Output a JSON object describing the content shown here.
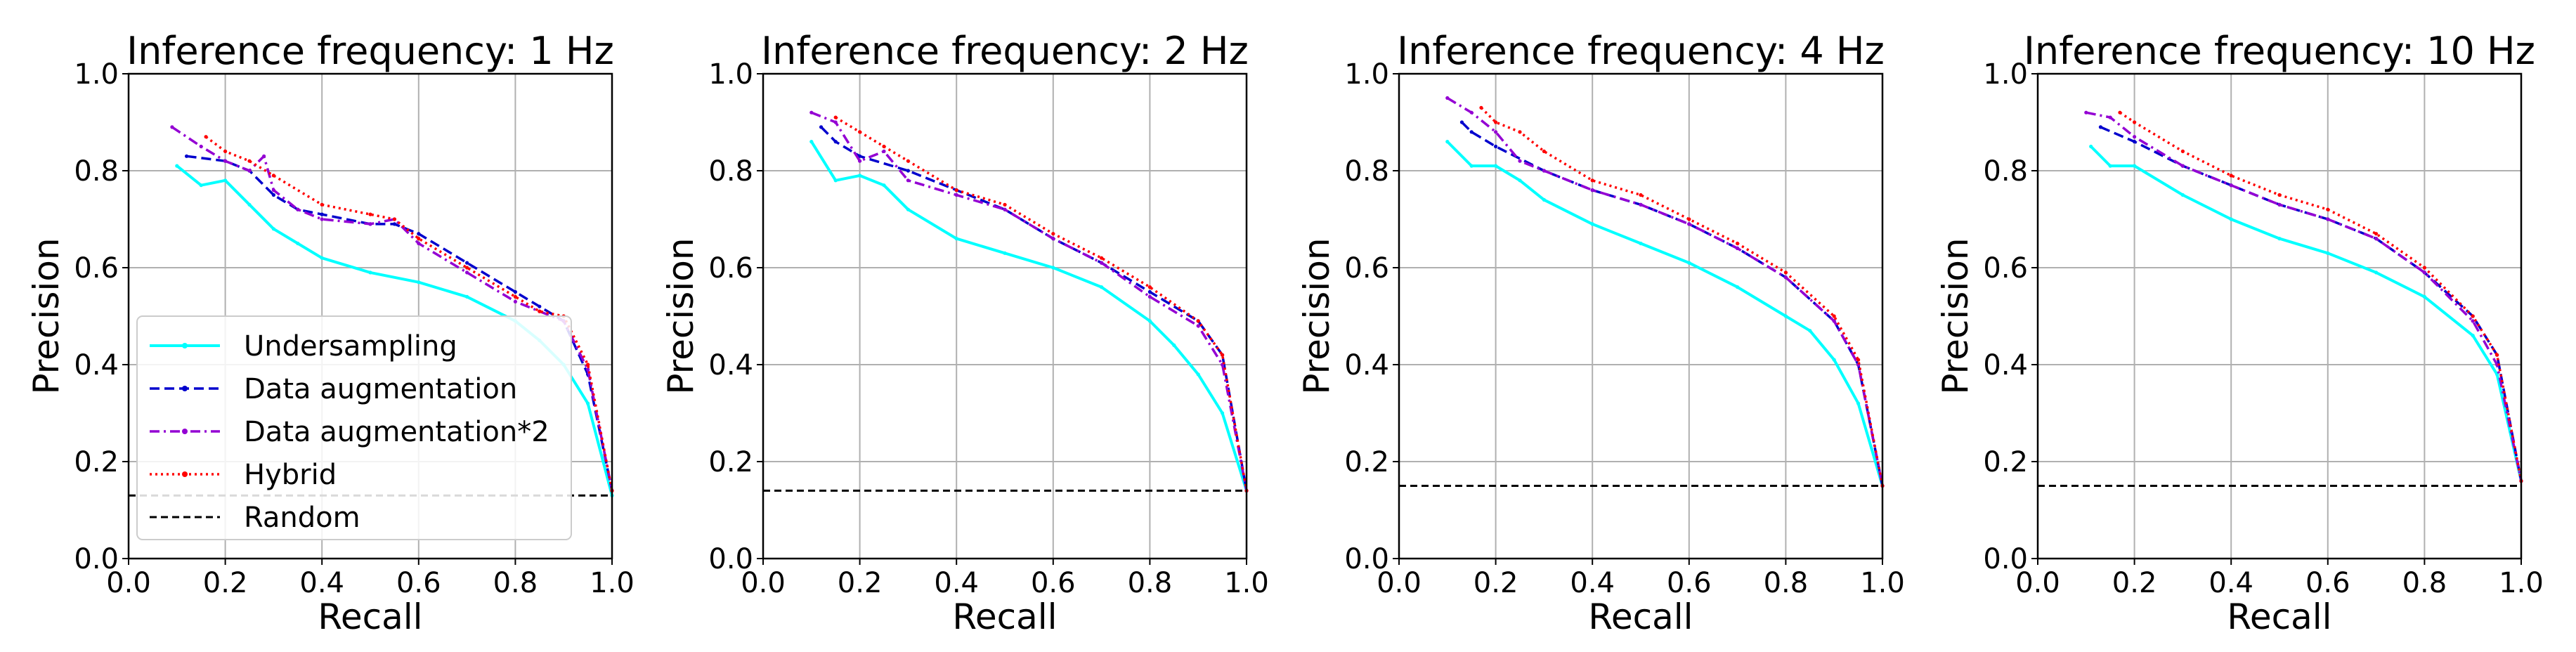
{
  "figure": {
    "x_ticks": [
      "0.0",
      "0.2",
      "0.4",
      "0.6",
      "0.8",
      "1.0"
    ],
    "y_ticks": [
      "0.0",
      "0.2",
      "0.4",
      "0.6",
      "0.8",
      "1.0"
    ]
  },
  "legend": {
    "location": "lower-left of first panel",
    "entries": [
      {
        "label": "Undersampling",
        "color": "#00ffff"
      },
      {
        "label": "Data augmentation",
        "color": "#0000cd"
      },
      {
        "label": "Data augmentation*2",
        "color": "#9400d3"
      },
      {
        "label": "Hybrid",
        "color": "#ff0000"
      },
      {
        "label": "Random",
        "color": "#000000"
      }
    ]
  },
  "chart_data": [
    {
      "type": "line",
      "title": "Inference frequency: 1 Hz",
      "xlabel": "Recall",
      "ylabel": "Precision",
      "xlim": [
        0,
        1
      ],
      "ylim": [
        0,
        1
      ],
      "grid": true,
      "series": [
        {
          "name": "Undersampling",
          "color": "#00ffff",
          "x": [
            0.1,
            0.15,
            0.2,
            0.25,
            0.3,
            0.35,
            0.4,
            0.5,
            0.6,
            0.7,
            0.8,
            0.85,
            0.9,
            0.95,
            1.0
          ],
          "y": [
            0.81,
            0.77,
            0.78,
            0.73,
            0.68,
            0.65,
            0.62,
            0.59,
            0.57,
            0.54,
            0.49,
            0.45,
            0.4,
            0.32,
            0.13
          ]
        },
        {
          "name": "Data augmentation",
          "color": "#0000cd",
          "x": [
            0.12,
            0.2,
            0.25,
            0.3,
            0.35,
            0.4,
            0.5,
            0.55,
            0.6,
            0.7,
            0.8,
            0.85,
            0.9,
            0.95,
            1.0
          ],
          "y": [
            0.83,
            0.82,
            0.8,
            0.75,
            0.72,
            0.71,
            0.69,
            0.69,
            0.67,
            0.61,
            0.55,
            0.52,
            0.49,
            0.38,
            0.14
          ]
        },
        {
          "name": "Data augmentation*2",
          "color": "#9400d3",
          "x": [
            0.09,
            0.15,
            0.2,
            0.25,
            0.28,
            0.3,
            0.35,
            0.4,
            0.5,
            0.55,
            0.6,
            0.7,
            0.8,
            0.85,
            0.9,
            0.95,
            1.0
          ],
          "y": [
            0.89,
            0.85,
            0.82,
            0.8,
            0.83,
            0.76,
            0.72,
            0.7,
            0.69,
            0.7,
            0.65,
            0.59,
            0.53,
            0.51,
            0.49,
            0.39,
            0.14
          ]
        },
        {
          "name": "Hybrid",
          "color": "#ff0000",
          "x": [
            0.16,
            0.2,
            0.25,
            0.3,
            0.4,
            0.5,
            0.55,
            0.6,
            0.7,
            0.8,
            0.85,
            0.9,
            0.95,
            1.0
          ],
          "y": [
            0.87,
            0.84,
            0.82,
            0.79,
            0.73,
            0.71,
            0.7,
            0.66,
            0.6,
            0.54,
            0.51,
            0.5,
            0.4,
            0.14
          ]
        },
        {
          "name": "Random",
          "color": "#000000",
          "x": [
            0,
            1
          ],
          "y": [
            0.13,
            0.13
          ]
        }
      ]
    },
    {
      "type": "line",
      "title": "Inference frequency: 2 Hz",
      "xlabel": "Recall",
      "ylabel": "Precision",
      "xlim": [
        0,
        1
      ],
      "ylim": [
        0,
        1
      ],
      "grid": true,
      "series": [
        {
          "name": "Undersampling",
          "color": "#00ffff",
          "x": [
            0.1,
            0.15,
            0.2,
            0.25,
            0.3,
            0.4,
            0.5,
            0.6,
            0.7,
            0.8,
            0.85,
            0.9,
            0.95,
            1.0
          ],
          "y": [
            0.86,
            0.78,
            0.79,
            0.77,
            0.72,
            0.66,
            0.63,
            0.6,
            0.56,
            0.49,
            0.44,
            0.38,
            0.3,
            0.14
          ]
        },
        {
          "name": "Data augmentation",
          "color": "#0000cd",
          "x": [
            0.12,
            0.15,
            0.2,
            0.3,
            0.4,
            0.5,
            0.6,
            0.7,
            0.8,
            0.9,
            0.95,
            1.0
          ],
          "y": [
            0.89,
            0.86,
            0.83,
            0.8,
            0.76,
            0.72,
            0.66,
            0.61,
            0.55,
            0.49,
            0.42,
            0.14
          ]
        },
        {
          "name": "Data augmentation*2",
          "color": "#9400d3",
          "x": [
            0.1,
            0.15,
            0.2,
            0.25,
            0.3,
            0.4,
            0.5,
            0.6,
            0.7,
            0.8,
            0.9,
            0.95,
            1.0
          ],
          "y": [
            0.92,
            0.9,
            0.82,
            0.84,
            0.78,
            0.75,
            0.72,
            0.66,
            0.61,
            0.54,
            0.48,
            0.4,
            0.14
          ]
        },
        {
          "name": "Hybrid",
          "color": "#ff0000",
          "x": [
            0.15,
            0.2,
            0.25,
            0.3,
            0.4,
            0.5,
            0.6,
            0.7,
            0.8,
            0.9,
            0.95,
            1.0
          ],
          "y": [
            0.91,
            0.88,
            0.85,
            0.82,
            0.76,
            0.73,
            0.67,
            0.62,
            0.56,
            0.49,
            0.42,
            0.14
          ]
        },
        {
          "name": "Random",
          "color": "#000000",
          "x": [
            0,
            1
          ],
          "y": [
            0.14,
            0.14
          ]
        }
      ]
    },
    {
      "type": "line",
      "title": "Inference frequency: 4 Hz",
      "xlabel": "Recall",
      "ylabel": "Precision",
      "xlim": [
        0,
        1
      ],
      "ylim": [
        0,
        1
      ],
      "grid": true,
      "series": [
        {
          "name": "Undersampling",
          "color": "#00ffff",
          "x": [
            0.1,
            0.15,
            0.2,
            0.25,
            0.3,
            0.4,
            0.5,
            0.6,
            0.7,
            0.8,
            0.85,
            0.9,
            0.95,
            1.0
          ],
          "y": [
            0.86,
            0.81,
            0.81,
            0.78,
            0.74,
            0.69,
            0.65,
            0.61,
            0.56,
            0.5,
            0.47,
            0.41,
            0.32,
            0.15
          ]
        },
        {
          "name": "Data augmentation",
          "color": "#0000cd",
          "x": [
            0.13,
            0.15,
            0.2,
            0.3,
            0.4,
            0.5,
            0.6,
            0.7,
            0.8,
            0.9,
            0.95,
            1.0
          ],
          "y": [
            0.9,
            0.88,
            0.85,
            0.8,
            0.76,
            0.73,
            0.69,
            0.64,
            0.58,
            0.49,
            0.4,
            0.15
          ]
        },
        {
          "name": "Data augmentation*2",
          "color": "#9400d3",
          "x": [
            0.1,
            0.15,
            0.2,
            0.25,
            0.3,
            0.4,
            0.5,
            0.6,
            0.7,
            0.8,
            0.9,
            0.95,
            1.0
          ],
          "y": [
            0.95,
            0.92,
            0.88,
            0.82,
            0.8,
            0.76,
            0.73,
            0.69,
            0.64,
            0.58,
            0.49,
            0.4,
            0.15
          ]
        },
        {
          "name": "Hybrid",
          "color": "#ff0000",
          "x": [
            0.17,
            0.2,
            0.25,
            0.3,
            0.4,
            0.5,
            0.6,
            0.7,
            0.8,
            0.9,
            0.95,
            1.0
          ],
          "y": [
            0.93,
            0.9,
            0.88,
            0.84,
            0.78,
            0.75,
            0.7,
            0.65,
            0.59,
            0.5,
            0.41,
            0.15
          ]
        },
        {
          "name": "Random",
          "color": "#000000",
          "x": [
            0,
            1
          ],
          "y": [
            0.15,
            0.15
          ]
        }
      ]
    },
    {
      "type": "line",
      "title": "Inference frequency: 10 Hz",
      "xlabel": "Recall",
      "ylabel": "Precision",
      "xlim": [
        0,
        1
      ],
      "ylim": [
        0,
        1
      ],
      "grid": true,
      "series": [
        {
          "name": "Undersampling",
          "color": "#00ffff",
          "x": [
            0.11,
            0.15,
            0.2,
            0.3,
            0.4,
            0.5,
            0.6,
            0.7,
            0.8,
            0.9,
            0.95,
            1.0
          ],
          "y": [
            0.85,
            0.81,
            0.81,
            0.75,
            0.7,
            0.66,
            0.63,
            0.59,
            0.54,
            0.46,
            0.38,
            0.16
          ]
        },
        {
          "name": "Data augmentation",
          "color": "#0000cd",
          "x": [
            0.13,
            0.2,
            0.3,
            0.4,
            0.5,
            0.6,
            0.7,
            0.8,
            0.9,
            0.95,
            1.0
          ],
          "y": [
            0.89,
            0.86,
            0.81,
            0.77,
            0.73,
            0.7,
            0.66,
            0.59,
            0.5,
            0.42,
            0.16
          ]
        },
        {
          "name": "Data augmentation*2",
          "color": "#9400d3",
          "x": [
            0.1,
            0.15,
            0.2,
            0.3,
            0.4,
            0.5,
            0.6,
            0.7,
            0.8,
            0.9,
            0.95,
            1.0
          ],
          "y": [
            0.92,
            0.91,
            0.87,
            0.81,
            0.77,
            0.73,
            0.7,
            0.66,
            0.59,
            0.49,
            0.4,
            0.16
          ]
        },
        {
          "name": "Hybrid",
          "color": "#ff0000",
          "x": [
            0.17,
            0.2,
            0.3,
            0.4,
            0.5,
            0.6,
            0.7,
            0.8,
            0.9,
            0.95,
            1.0
          ],
          "y": [
            0.92,
            0.9,
            0.84,
            0.79,
            0.75,
            0.72,
            0.67,
            0.6,
            0.5,
            0.42,
            0.16
          ]
        },
        {
          "name": "Random",
          "color": "#000000",
          "x": [
            0,
            1
          ],
          "y": [
            0.15,
            0.15
          ]
        }
      ]
    }
  ]
}
